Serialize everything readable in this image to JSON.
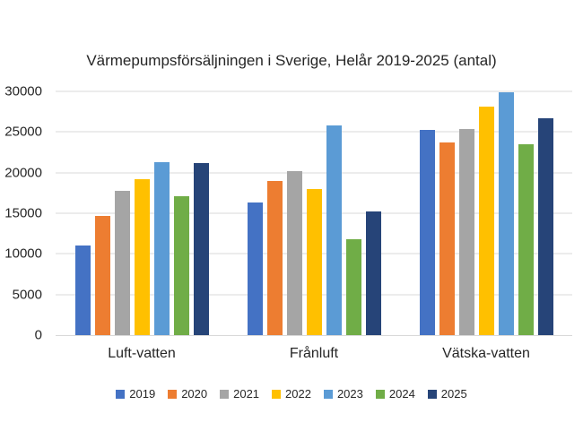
{
  "chart_data": {
    "type": "bar",
    "title": "Värmepumpsförsäljningen i Sverige, Helår 2019-2025 (antal)",
    "categories": [
      "Luft-vatten",
      "Frånluft",
      "Vätska-vatten"
    ],
    "series": [
      {
        "name": "2019",
        "color": "#4472C4",
        "values": [
          11000,
          16300,
          25300
        ]
      },
      {
        "name": "2020",
        "color": "#ED7D31",
        "values": [
          14700,
          19000,
          23700
        ]
      },
      {
        "name": "2021",
        "color": "#A5A5A5",
        "values": [
          17800,
          20200,
          25400
        ]
      },
      {
        "name": "2022",
        "color": "#FFC000",
        "values": [
          19200,
          18000,
          28100
        ]
      },
      {
        "name": "2023",
        "color": "#5B9BD5",
        "values": [
          21300,
          25800,
          29900
        ]
      },
      {
        "name": "2024",
        "color": "#70AD47",
        "values": [
          17100,
          11800,
          23500
        ]
      },
      {
        "name": "2025",
        "color": "#264478",
        "values": [
          21200,
          15200,
          26700
        ]
      }
    ],
    "xlabel": "",
    "ylabel": "",
    "ylim": [
      0,
      30000
    ],
    "yticks": [
      0,
      5000,
      10000,
      15000,
      20000,
      25000,
      30000
    ],
    "grid": true,
    "gridline_color": "#D9D9D9",
    "legend_position": "bottom",
    "background_color": "#FFFFFF",
    "text_color": "#262626"
  }
}
